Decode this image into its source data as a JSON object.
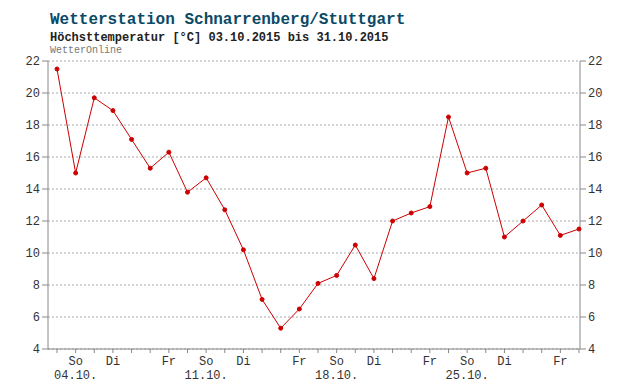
{
  "chart_data": {
    "type": "line",
    "title": "Wetterstation Schnarrenberg/Stuttgart",
    "subtitle": "Höchsttemperatur [°C] 03.10.2015 bis 31.10.2015",
    "source": "WetterOnline",
    "categories": [
      null,
      "So\n04.10.",
      null,
      "Di",
      null,
      null,
      "Fr",
      null,
      "So\n11.10.",
      null,
      "Di",
      null,
      null,
      "Fr",
      null,
      "So\n18.10.",
      null,
      "Di",
      null,
      null,
      "Fr",
      null,
      "So\n25.10.",
      null,
      "Di",
      null,
      null,
      "Fr",
      null
    ],
    "values": [
      21.5,
      15.0,
      19.7,
      18.9,
      17.1,
      15.3,
      16.3,
      13.8,
      14.7,
      12.7,
      10.2,
      7.1,
      5.3,
      6.5,
      8.1,
      8.6,
      10.5,
      8.4,
      12.0,
      12.5,
      12.9,
      18.5,
      15.0,
      15.3,
      11.0,
      12.0,
      13.0,
      11.1,
      11.5
    ],
    "color": "#cc0000",
    "marker": "circle",
    "ylim": [
      4,
      22
    ],
    "yticks": [
      4,
      6,
      8,
      10,
      12,
      14,
      16,
      18,
      20,
      22
    ],
    "grid": true
  }
}
